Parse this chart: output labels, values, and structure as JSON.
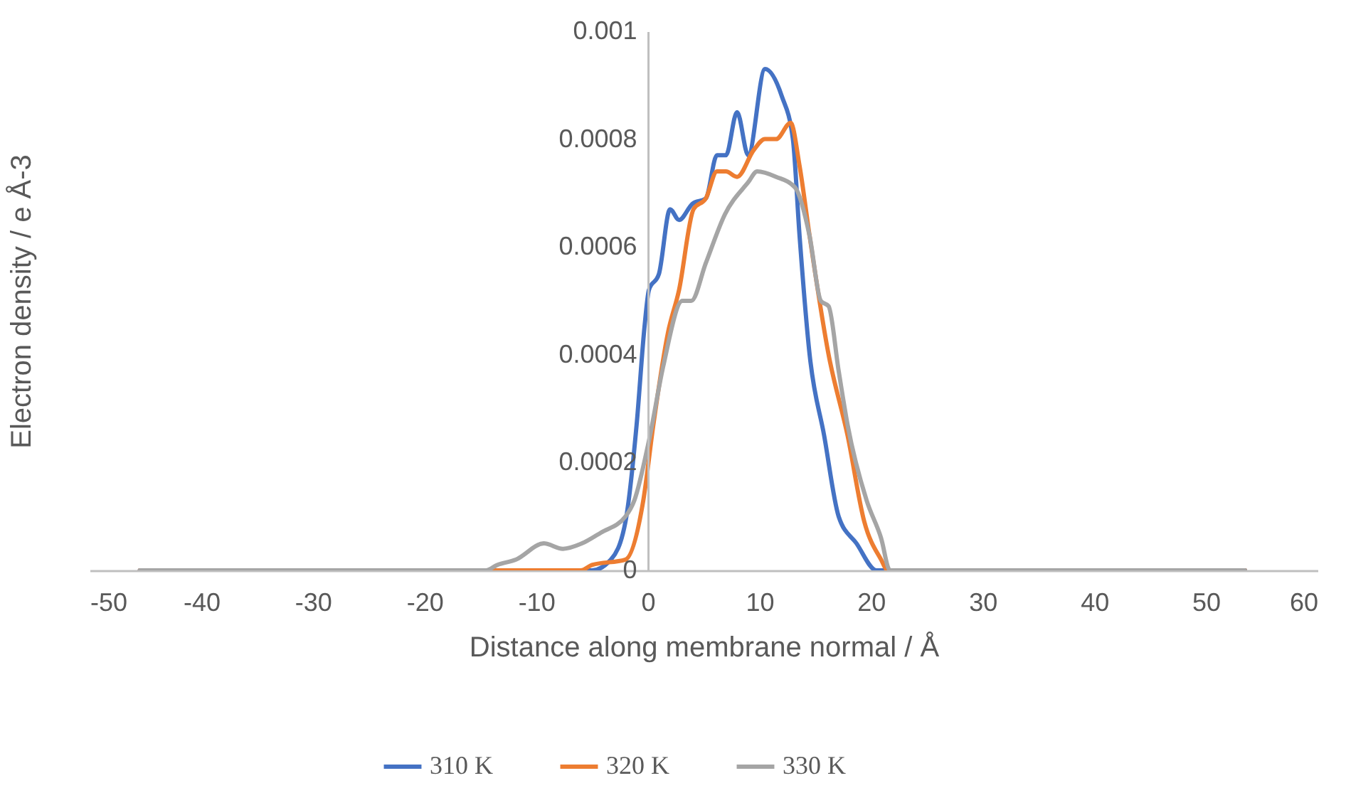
{
  "chart_data": {
    "type": "line",
    "xlabel": "Distance along membrane normal / Å",
    "ylabel": "Electron density / e Å-3",
    "xlim": [
      -50,
      60
    ],
    "xticks": [
      -50,
      -40,
      -30,
      -20,
      -10,
      0,
      10,
      20,
      30,
      40,
      50,
      60
    ],
    "ylim": [
      0,
      0.001
    ],
    "yticks": [
      0,
      0.0002,
      0.0004,
      0.0006,
      0.0008,
      0.001
    ],
    "grid": false,
    "legend": "bottom",
    "line_style": "solid",
    "marker": "none",
    "series": [
      {
        "name": "310 K",
        "color": "#4472c4",
        "x": [
          -45.5,
          -5,
          -3.3,
          -2,
          -1,
          -0.3,
          0.1,
          1,
          2,
          2.8,
          4,
          5.2,
          6.2,
          7,
          8,
          9,
          10.5,
          12,
          13,
          13.6,
          14.5,
          15.8,
          17.1,
          18.7,
          20.5,
          53.5
        ],
        "values": [
          0,
          0,
          2e-05,
          9e-05,
          0.00027,
          0.00045,
          0.00052,
          0.00055,
          0.00067,
          0.00065,
          0.00068,
          0.00069,
          0.00077,
          0.00077,
          0.00085,
          0.00077,
          0.00093,
          0.00088,
          0.0008,
          0.00062,
          0.0004,
          0.00025,
          0.0001,
          5e-05,
          0,
          0
        ]
      },
      {
        "name": "320 K",
        "color": "#ed7d31",
        "x": [
          -45.5,
          -6,
          -5,
          -2,
          -0.4,
          0.5,
          1.8,
          2.8,
          4.1,
          5.2,
          6.2,
          7,
          8,
          9.5,
          10.5,
          11.5,
          12.8,
          13.6,
          14.5,
          16.2,
          17.9,
          19.4,
          20.9,
          21.5,
          53.5
        ],
        "values": [
          0,
          0,
          1e-05,
          2e-05,
          0.00013,
          0.00027,
          0.00044,
          0.00052,
          0.00067,
          0.00069,
          0.00074,
          0.00074,
          0.00073,
          0.00078,
          0.0008,
          0.0008,
          0.00083,
          0.00075,
          0.00062,
          0.0004,
          0.00025,
          9e-05,
          2e-05,
          0,
          0
        ]
      },
      {
        "name": "330 K",
        "color": "#a5a5a5",
        "x": [
          -45.5,
          -14.5,
          -13.5,
          -11.8,
          -9.3,
          -7.6,
          -5.9,
          -4.2,
          -2,
          -1.2,
          0.1,
          1.4,
          3.1,
          3.9,
          5.2,
          6.9,
          9,
          9.8,
          11.5,
          13.2,
          14.5,
          15.5,
          16.2,
          17.1,
          17.9,
          19.6,
          20.9,
          21.7,
          53.5
        ],
        "values": [
          0,
          0,
          1e-05,
          2e-05,
          5e-05,
          4e-05,
          5e-05,
          7e-05,
          0.0001,
          0.00013,
          0.00024,
          0.00038,
          0.0005,
          0.0005,
          0.00057,
          0.00066,
          0.00072,
          0.00074,
          0.00073,
          0.00071,
          0.00062,
          0.0005,
          0.00049,
          0.00037,
          0.00027,
          0.00013,
          6e-05,
          0,
          0
        ]
      }
    ]
  }
}
